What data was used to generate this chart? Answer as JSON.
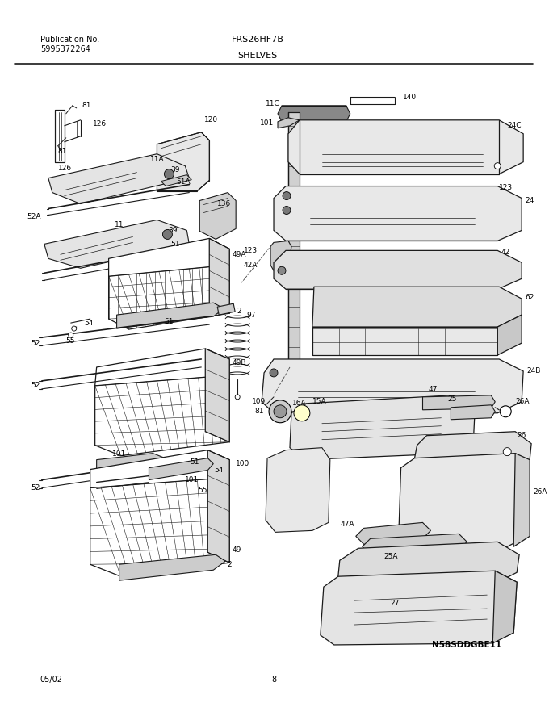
{
  "title": "FRS26HF7B",
  "subtitle": "SHELVES",
  "pub_label": "Publication No.",
  "pub_number": "5995372264",
  "date": "05/02",
  "page": "8",
  "diagram_id": "N58SDDGBE11",
  "bg_color": "#ffffff",
  "line_color": "#1a1a1a",
  "figsize": [
    6.8,
    8.71
  ],
  "dpi": 100
}
